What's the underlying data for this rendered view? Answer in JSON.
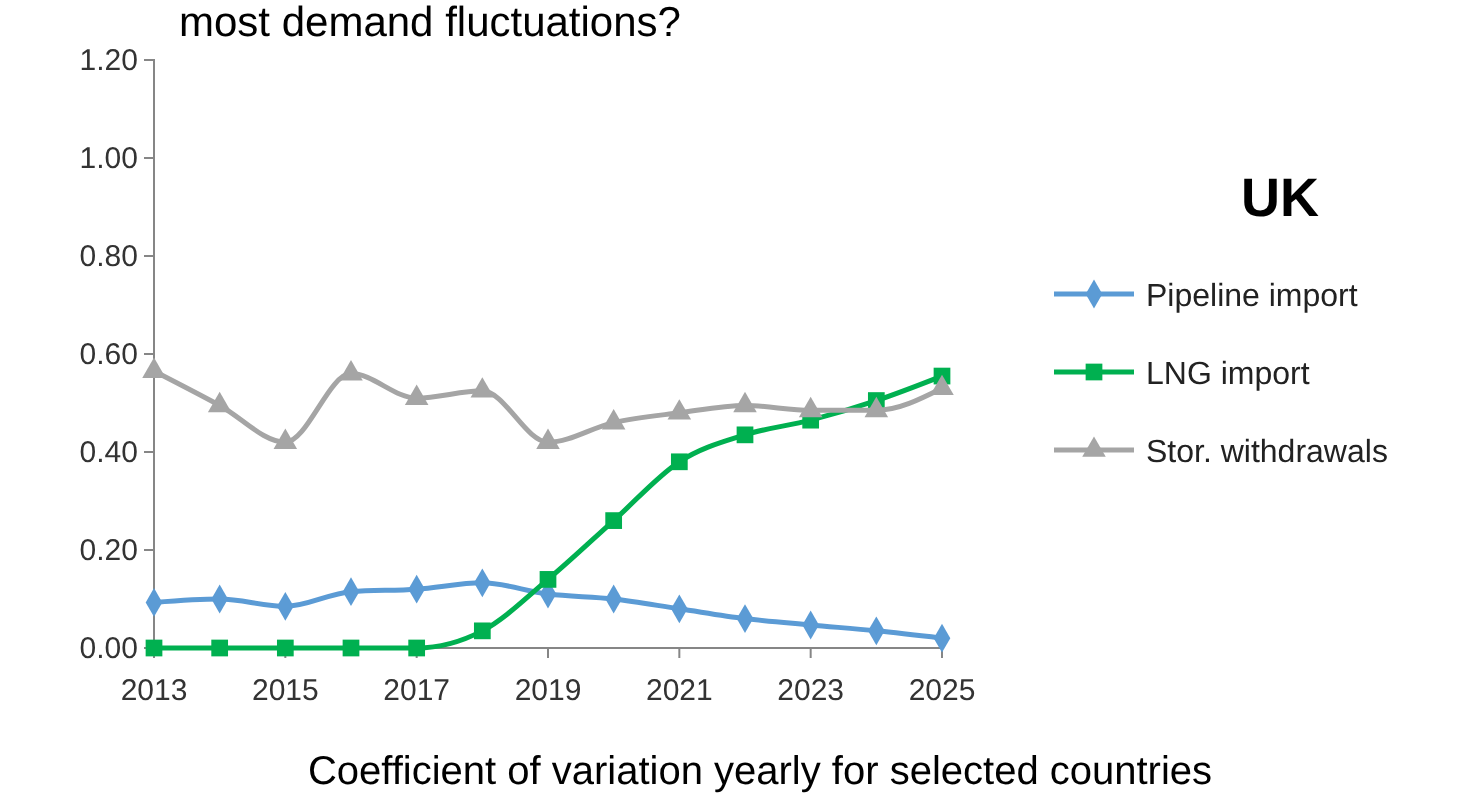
{
  "chart_data": {
    "type": "line",
    "title": "most demand fluctuations?",
    "xlabel": "Coefficient of variation yearly for selected countries",
    "annotations": [
      "UK"
    ],
    "x": [
      2013,
      2014,
      2015,
      2016,
      2017,
      2018,
      2019,
      2020,
      2021,
      2022,
      2023,
      2024,
      2025
    ],
    "xlim": [
      2013,
      2025
    ],
    "xticks": [
      2013,
      2015,
      2017,
      2019,
      2021,
      2023,
      2025
    ],
    "ylim": [
      0,
      1.2
    ],
    "yticks": [
      {
        "value": 0,
        "label": "0.00"
      },
      {
        "value": 0.2,
        "label": "0.20"
      },
      {
        "value": 0.4,
        "label": "0.40"
      },
      {
        "value": 0.6,
        "label": "0.60"
      },
      {
        "value": 0.8,
        "label": "0.80"
      },
      {
        "value": 1,
        "label": "1.00"
      },
      {
        "value": 1.2,
        "label": "1.20"
      }
    ],
    "grid": false,
    "legend": "right",
    "series": [
      {
        "name": "Pipeline import",
        "color": "#5b9bd5",
        "marker": "diamond",
        "values": [
          0.093,
          0.1,
          0.085,
          0.115,
          0.12,
          0.133,
          0.11,
          0.1,
          0.08,
          0.06,
          0.047,
          0.035,
          0.02
        ]
      },
      {
        "name": "LNG import",
        "color": "#00b050",
        "marker": "square",
        "values": [
          0,
          0,
          0,
          0,
          0,
          0.035,
          0.14,
          0.26,
          0.38,
          0.435,
          0.465,
          0.505,
          0.555
        ]
      },
      {
        "name": "Stor. withdrawals",
        "color": "#a5a5a5",
        "marker": "triangle",
        "values": [
          0.565,
          0.495,
          0.42,
          0.56,
          0.51,
          0.525,
          0.42,
          0.46,
          0.48,
          0.495,
          0.485,
          0.485,
          0.53
        ]
      }
    ]
  }
}
